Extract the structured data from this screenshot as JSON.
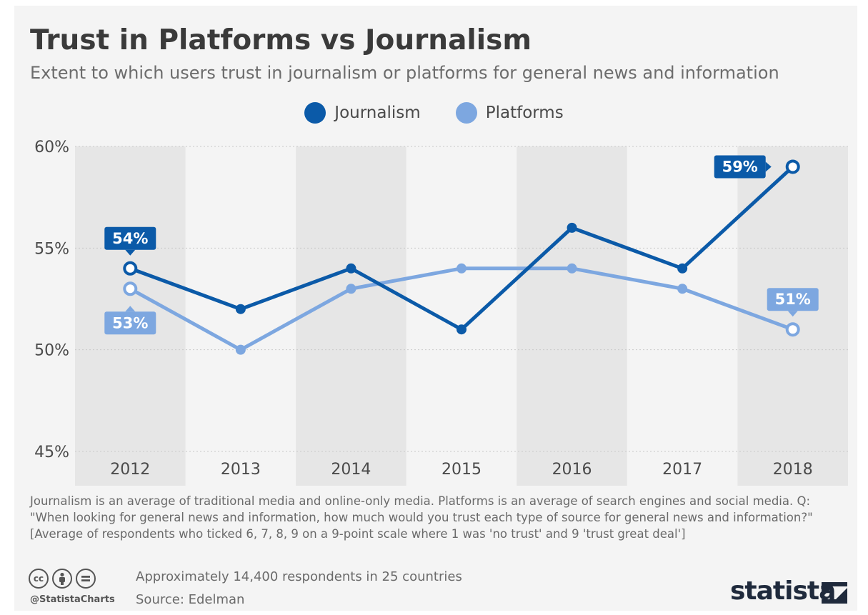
{
  "title": "Trust in Platforms vs Journalism",
  "subtitle": "Extent to which users trust in journalism or platforms for general news and information",
  "legend": [
    {
      "label": "Journalism",
      "color": "#0b5aa8"
    },
    {
      "label": "Platforms",
      "color": "#7da7e0"
    }
  ],
  "chart_data": {
    "type": "line",
    "categories": [
      "2012",
      "2013",
      "2014",
      "2015",
      "2016",
      "2017",
      "2018"
    ],
    "ylim": [
      45,
      60
    ],
    "yticks": [
      "45%",
      "50%",
      "55%",
      "60%"
    ],
    "grid": true,
    "legend_position": "top-center",
    "series": [
      {
        "name": "Journalism",
        "color": "#0b5aa8",
        "values": [
          54,
          52,
          54,
          51,
          56,
          54,
          59
        ]
      },
      {
        "name": "Platforms",
        "color": "#7da7e0",
        "values": [
          53,
          50,
          53,
          54,
          54,
          53,
          51
        ]
      }
    ],
    "data_labels": [
      {
        "series": 0,
        "index": 0,
        "text": "54%",
        "side": "above"
      },
      {
        "series": 0,
        "index": 6,
        "text": "59%",
        "side": "left"
      },
      {
        "series": 1,
        "index": 0,
        "text": "53%",
        "side": "below"
      },
      {
        "series": 1,
        "index": 6,
        "text": "51%",
        "side": "above"
      }
    ]
  },
  "footnote": "Journalism is an average of traditional media and online-only media. Platforms is an average of search engines and social media. Q: \"When looking for general news and information, how much would you trust each type of source for general news and information?\" [Average of respondents who ticked 6, 7, 8, 9 on a 9-point scale where 1 was 'no trust' and 9 'trust great deal']",
  "respondents": "Approximately 14,400 respondents in 25 countries",
  "source": "Source: Edelman",
  "handle": "@StatistaCharts",
  "license_icons": [
    "cc",
    "by",
    "nd"
  ],
  "brand": "statista"
}
